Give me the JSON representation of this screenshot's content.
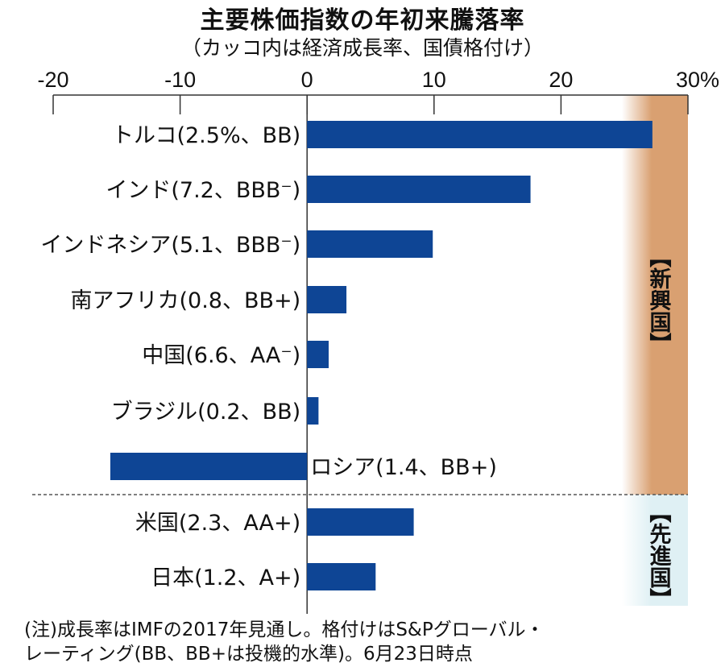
{
  "chart_data": {
    "type": "bar",
    "orientation": "horizontal",
    "title": "主要株価指数の年初来騰落率",
    "subtitle": "（カッコ内は経済成長率、国債格付け）",
    "xlim": [
      -20,
      30
    ],
    "ticks": [
      -20,
      -10,
      0,
      10,
      20,
      30
    ],
    "tick_labels": [
      "-20",
      "-10",
      "0",
      "10",
      "20",
      "30%"
    ],
    "categories": [
      "トルコ(2.5%、BB)",
      "インド(7.2、BBB⁻)",
      "インドネシア(5.1、BBB⁻)",
      "南アフリカ(0.8、BB+)",
      "中国(6.6、AA⁻)",
      "ブラジル(0.2、BB)",
      "ロシア(1.4、BB+)",
      "米国(2.3、AA+)",
      "日本(1.2、A+)"
    ],
    "values": [
      27.2,
      17.6,
      9.9,
      3.1,
      1.7,
      0.9,
      -15.5,
      8.4,
      5.4
    ],
    "groups": [
      {
        "label": "【新興国】",
        "count": 7,
        "color": "#d9a071"
      },
      {
        "label": "【先進国】",
        "count": 2,
        "color": "#dff0f4"
      }
    ],
    "bar_color": "#0e4595",
    "notes": [
      "(注)成長率はIMFの2017年見通し。格付けはS&Pグローバル・",
      "レーティング(BB、BB+は投機的水準)。6月23日時点"
    ]
  }
}
